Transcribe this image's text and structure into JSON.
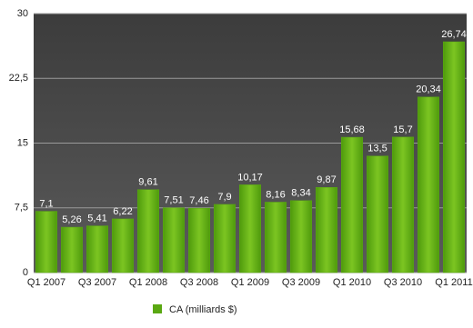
{
  "chart_data": {
    "type": "bar",
    "categories": [
      "Q1 2007",
      null,
      "Q3 2007",
      null,
      "Q1 2008",
      null,
      "Q3 2008",
      null,
      "Q1 2009",
      null,
      "Q3 2009",
      null,
      "Q1 2010",
      null,
      "Q3 2010",
      null,
      "Q1 2011"
    ],
    "series": [
      {
        "name": "CA (milliards $)",
        "color": "#5aa812",
        "values": [
          7.1,
          5.26,
          5.41,
          6.22,
          9.61,
          7.51,
          7.46,
          7.9,
          10.17,
          8.16,
          8.34,
          9.87,
          15.68,
          13.5,
          15.7,
          20.34,
          26.74
        ],
        "value_labels": [
          "7,1",
          "5,26",
          "5,41",
          "6,22",
          "9,61",
          "7,51",
          "7,46",
          "7,9",
          "10,17",
          "8,16",
          "8,34",
          "9,87",
          "15,68",
          "13,5",
          "15,7",
          "20,34",
          "26,74"
        ]
      }
    ],
    "ylim": [
      0,
      30
    ],
    "yticks": [
      0,
      {
        "value": 7.5,
        "label": "7,5"
      },
      15,
      {
        "value": 22.5,
        "label": "22,5"
      },
      30
    ],
    "grid": true,
    "legend": "bottom"
  }
}
